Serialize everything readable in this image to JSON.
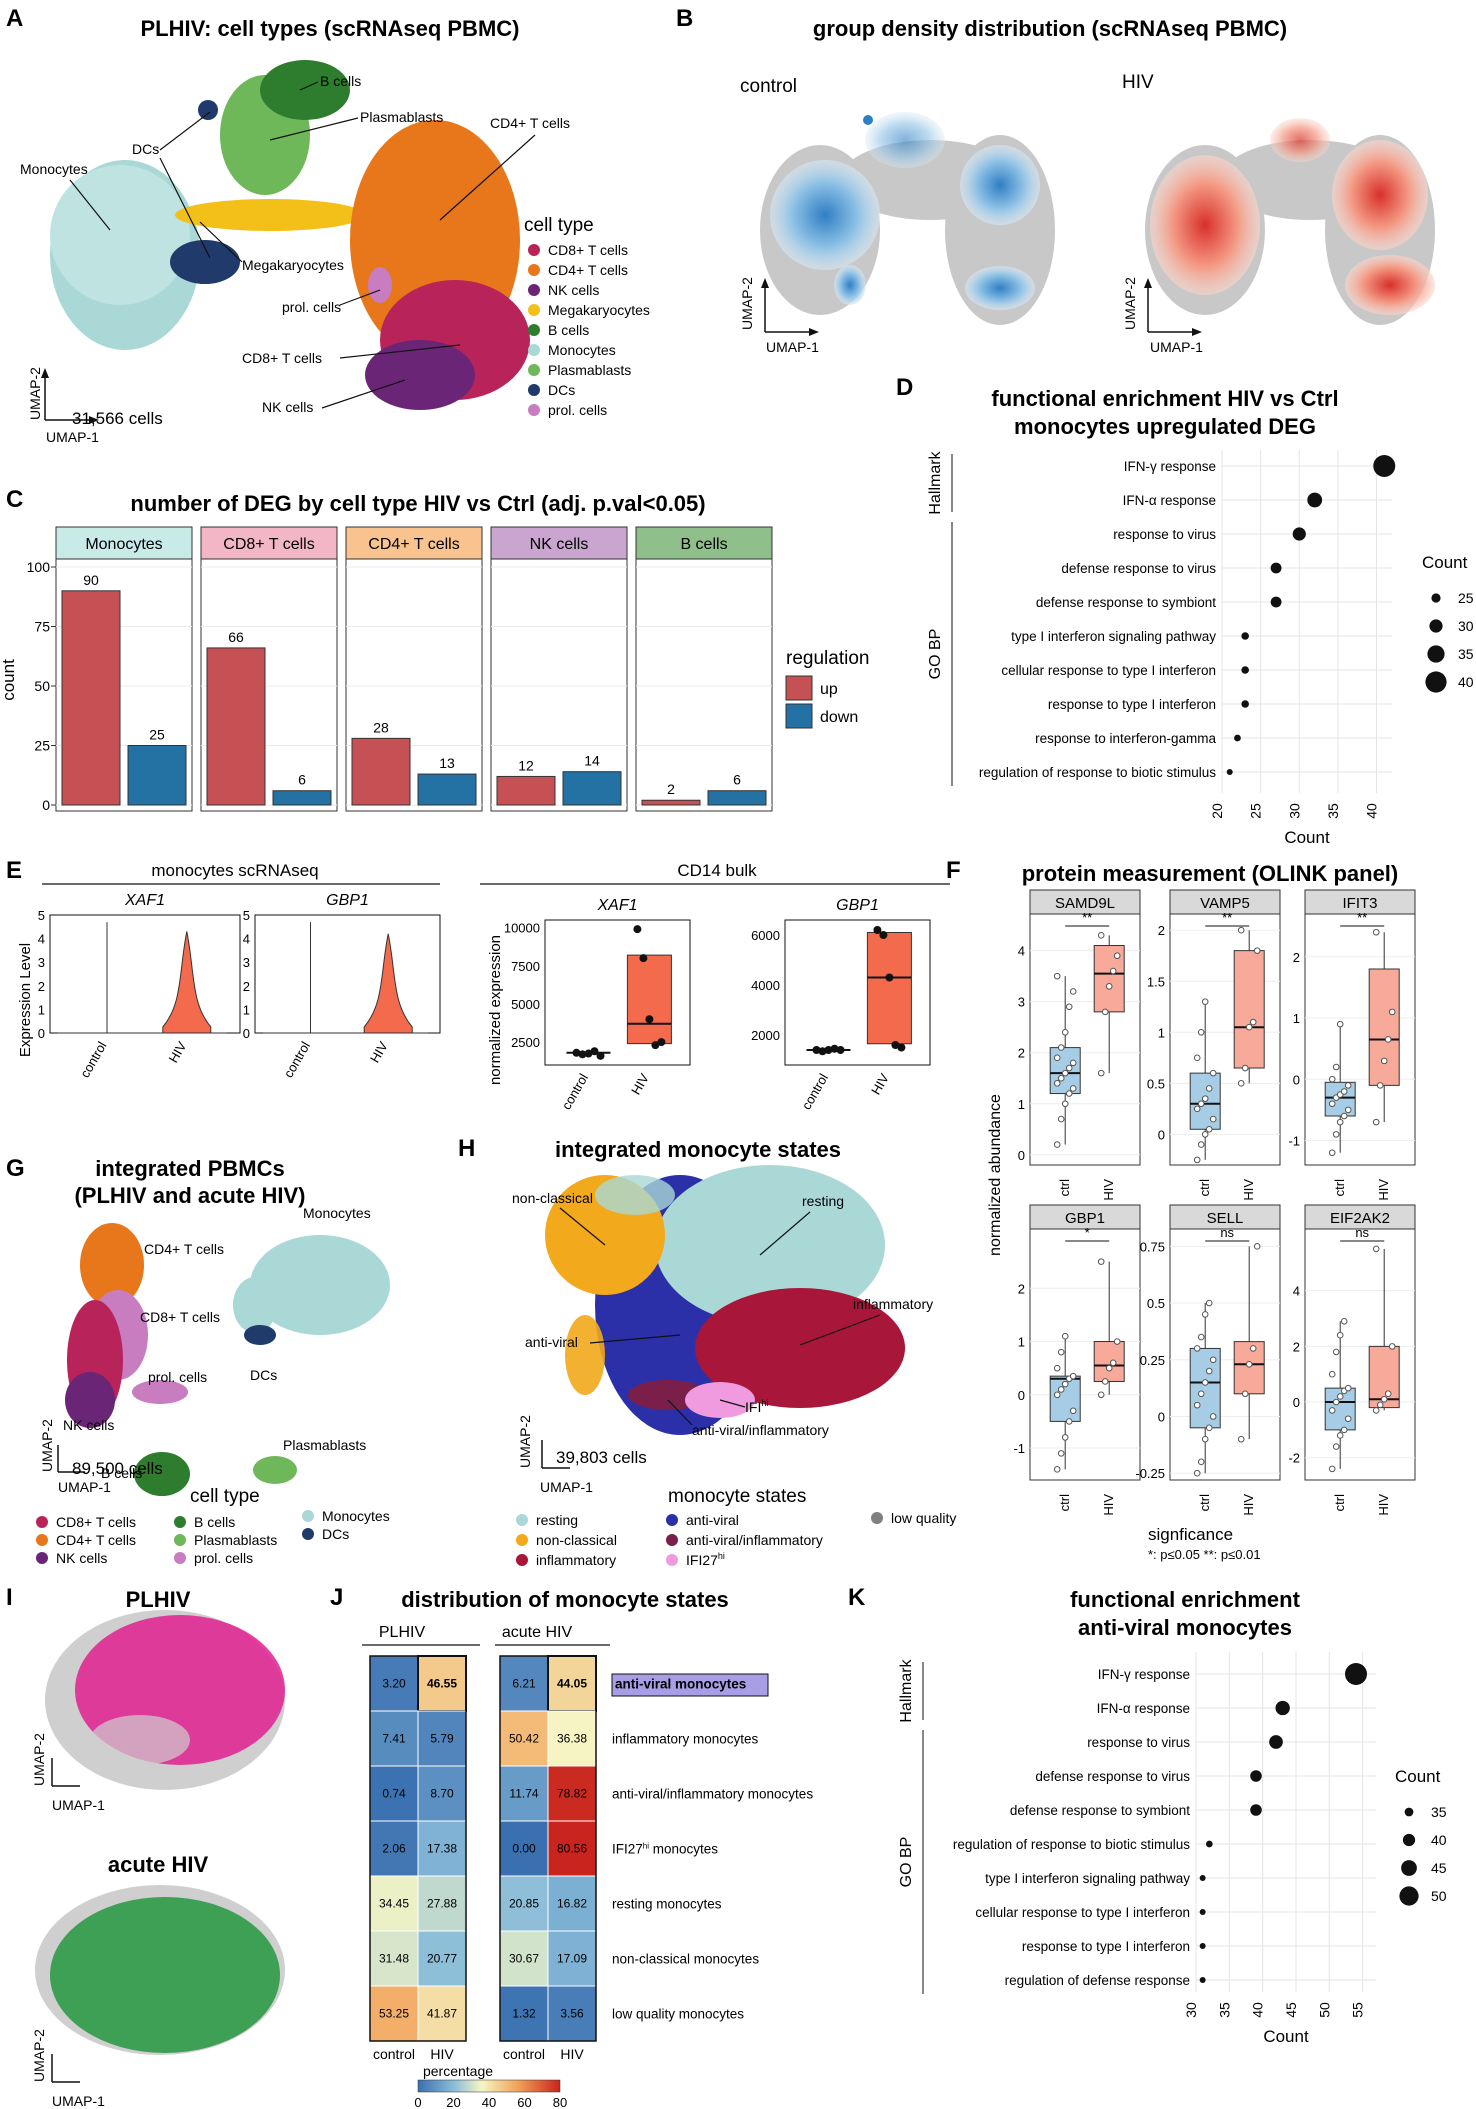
{
  "figure": {
    "panel_letters": [
      "A",
      "B",
      "C",
      "D",
      "E",
      "F",
      "G",
      "H",
      "I",
      "J",
      "K"
    ]
  },
  "panelA": {
    "title": "PLHIV: cell types (scRNAseq PBMC)",
    "cells_count": "31,566 cells",
    "axis_x": "UMAP-1",
    "axis_y": "UMAP-2",
    "legend_title": "cell type",
    "legend": [
      {
        "label": "CD8+ T cells",
        "color": "#b8245a"
      },
      {
        "label": "CD4+ T cells",
        "color": "#e8761b"
      },
      {
        "label": "NK cells",
        "color": "#6b2577"
      },
      {
        "label": "Megakaryocytes",
        "color": "#f2c019"
      },
      {
        "label": "B cells",
        "color": "#2e7d2e"
      },
      {
        "label": "Monocytes",
        "color": "#a9d8d6"
      },
      {
        "label": "Plasmablasts",
        "color": "#6fb85a"
      },
      {
        "label": "DCs",
        "color": "#1f3a6b"
      },
      {
        "label": "prol. cells",
        "color": "#c77dc0"
      }
    ],
    "cluster_labels": [
      "B cells",
      "Plasmablasts",
      "DCs",
      "CD4+ T cells",
      "Monocytes",
      "Megakaryocytes",
      "prol. cells",
      "CD8+ T cells",
      "NK cells"
    ]
  },
  "panelB": {
    "title": "group density distribution (scRNAseq PBMC)",
    "groups": [
      "control",
      "HIV"
    ],
    "axis_x": "UMAP-1",
    "axis_y": "UMAP-2"
  },
  "panelC": {
    "title": "number of DEG by cell type HIV vs Ctrl (adj. p.val<0.05)",
    "ylabel": "count",
    "legend_title": "regulation",
    "legend": [
      {
        "label": "up",
        "color": "#c65154"
      },
      {
        "label": "down",
        "color": "#2471a3"
      }
    ],
    "chart_data": {
      "type": "bar",
      "categories": [
        "Monocytes",
        "CD8+ T cells",
        "CD4+ T cells",
        "NK cells",
        "B cells"
      ],
      "facet_colors": [
        "#c8ebe8",
        "#f2b6c6",
        "#f9c38f",
        "#c9a5cf",
        "#8fbf8a"
      ],
      "series": [
        {
          "name": "up",
          "values": [
            90,
            66,
            28,
            12,
            2
          ]
        },
        {
          "name": "down",
          "values": [
            25,
            6,
            13,
            14,
            6
          ]
        }
      ],
      "ylim": [
        0,
        100
      ],
      "yticks": [
        0,
        25,
        50,
        75,
        100
      ]
    }
  },
  "panelD": {
    "title_line1": "functional enrichment HIV vs Ctrl",
    "title_line2": "monocytes upregulated DEG",
    "group_hallmark": "Hallmark",
    "group_gobp": "GO BP",
    "xlabel": "Count",
    "legend_title": "Count",
    "legend_values": [
      25,
      30,
      35,
      40
    ],
    "chart_data": {
      "type": "scatter",
      "terms": [
        "IFN-γ response",
        "IFN-α response",
        "response to virus",
        "defense response to virus",
        "defense response to symbiont",
        "type I interferon signaling pathway",
        "cellular response to type I interferon",
        "response to type I interferon",
        "response to interferon-gamma",
        "regulation of response to biotic stimulus"
      ],
      "counts": [
        41,
        32,
        30,
        27,
        27,
        23,
        23,
        23,
        22,
        21
      ],
      "xlim": [
        20,
        42
      ],
      "xticks": [
        20,
        25,
        30,
        35,
        40
      ]
    }
  },
  "panelE": {
    "left_title": "monocytes scRNAseq",
    "right_title": "CD14 bulk",
    "genes": [
      "XAF1",
      "GBP1"
    ],
    "ylabel_left": "Expression Level",
    "ylabel_right": "normalized expression",
    "groups": [
      "control",
      "HIV"
    ],
    "chart_data": [
      {
        "type": "violin",
        "gene": "XAF1",
        "yticks": [
          0,
          1,
          2,
          3,
          4,
          5
        ],
        "ylim": [
          0,
          5
        ],
        "hiv_max": 4.3
      },
      {
        "type": "violin",
        "gene": "GBP1",
        "yticks": [
          0,
          1,
          2,
          3,
          4,
          5
        ],
        "ylim": [
          0,
          5
        ],
        "hiv_max": 4.2
      },
      {
        "type": "box",
        "gene": "XAF1",
        "yticks": [
          2500,
          5000,
          7500,
          10000
        ],
        "ylim": [
          1000,
          10500
        ],
        "control": {
          "points": [
            1800,
            1700,
            1750,
            1900,
            1600
          ],
          "median": 1800,
          "q1": 1700,
          "q3": 1850
        },
        "HIV": {
          "points": [
            9900,
            8000,
            4000,
            2300,
            2500
          ],
          "median": 3700,
          "q1": 2400,
          "q3": 8200
        }
      },
      {
        "type": "box",
        "gene": "GBP1",
        "yticks": [
          2000,
          4000,
          6000
        ],
        "ylim": [
          800,
          6600
        ],
        "control": {
          "points": [
            1400,
            1350,
            1400,
            1450,
            1400
          ],
          "median": 1400,
          "q1": 1380,
          "q3": 1420
        },
        "HIV": {
          "points": [
            6200,
            6000,
            4300,
            1600,
            1500
          ],
          "median": 4300,
          "q1": 1650,
          "q3": 6100
        }
      }
    ]
  },
  "panelF": {
    "title": "protein measurement (OLINK panel)",
    "ylabel": "normalized abundance",
    "groups": [
      "ctrl",
      "HIV"
    ],
    "significance_title": "signficance",
    "significance_legend": "*: p≤0.05     **: p≤0.01",
    "chart_data": [
      {
        "type": "box",
        "protein": "SAMD9L",
        "sig": "**",
        "ylim": [
          -0.2,
          4.6
        ],
        "yticks": [
          0,
          1,
          2,
          3,
          4
        ],
        "ctrl": {
          "q1": 1.2,
          "median": 1.6,
          "q3": 2.1,
          "lo": 0.2,
          "hi": 3.5,
          "points": [
            0.2,
            0.7,
            1.0,
            1.2,
            1.3,
            1.4,
            1.5,
            1.6,
            1.7,
            1.8,
            1.9,
            2.1,
            2.4,
            2.9,
            3.2,
            3.5
          ]
        },
        "HIV": {
          "q1": 2.8,
          "median": 3.55,
          "q3": 4.1,
          "lo": 1.6,
          "hi": 4.3,
          "points": [
            1.6,
            2.8,
            3.3,
            3.6,
            3.9,
            4.3
          ]
        }
      },
      {
        "type": "box",
        "protein": "VAMP5",
        "sig": "**",
        "ylim": [
          -0.3,
          2.1
        ],
        "yticks": [
          0.0,
          0.5,
          1.0,
          1.5,
          2.0
        ],
        "ctrl": {
          "q1": 0.05,
          "median": 0.3,
          "q3": 0.6,
          "lo": -0.25,
          "hi": 1.3,
          "points": [
            -0.25,
            -0.1,
            0.0,
            0.05,
            0.15,
            0.25,
            0.3,
            0.35,
            0.45,
            0.6,
            0.75,
            1.0,
            1.3
          ]
        },
        "HIV": {
          "q1": 0.65,
          "median": 1.05,
          "q3": 1.8,
          "lo": 0.5,
          "hi": 2.0,
          "points": [
            0.5,
            0.65,
            1.05,
            1.1,
            1.8,
            2.0
          ]
        }
      },
      {
        "type": "box",
        "protein": "IFIT3",
        "sig": "**",
        "ylim": [
          -1.4,
          2.6
        ],
        "yticks": [
          -1,
          0,
          1,
          2
        ],
        "ctrl": {
          "q1": -0.6,
          "median": -0.3,
          "q3": -0.05,
          "lo": -1.2,
          "hi": 0.9,
          "points": [
            -1.2,
            -0.9,
            -0.7,
            -0.6,
            -0.5,
            -0.4,
            -0.3,
            -0.25,
            -0.2,
            -0.1,
            0.0,
            0.2,
            0.9
          ]
        },
        "HIV": {
          "q1": -0.1,
          "median": 0.65,
          "q3": 1.8,
          "lo": -0.7,
          "hi": 2.4,
          "points": [
            -0.7,
            -0.1,
            0.3,
            0.65,
            1.1,
            2.4
          ]
        }
      },
      {
        "type": "box",
        "protein": "GBP1",
        "sig": "*",
        "ylim": [
          -1.6,
          3.0
        ],
        "yticks": [
          -1,
          0,
          1,
          2
        ],
        "ctrl": {
          "q1": -0.5,
          "median": 0.3,
          "q3": 0.35,
          "lo": -1.4,
          "hi": 1.1,
          "points": [
            -1.4,
            -1.1,
            -0.8,
            -0.5,
            -0.3,
            0.0,
            0.1,
            0.2,
            0.3,
            0.35,
            0.5,
            0.8,
            1.1
          ]
        },
        "HIV": {
          "q1": 0.25,
          "median": 0.55,
          "q3": 1.0,
          "lo": 0.0,
          "hi": 2.5,
          "points": [
            0.0,
            0.25,
            0.5,
            0.6,
            1.0,
            2.5
          ]
        }
      },
      {
        "type": "box",
        "protein": "SELL",
        "sig": "ns",
        "ylim": [
          -0.28,
          0.8
        ],
        "yticks": [
          -0.25,
          0.0,
          0.25,
          0.5,
          0.75
        ],
        "ctrl": {
          "q1": -0.05,
          "median": 0.15,
          "q3": 0.3,
          "lo": -0.25,
          "hi": 0.5,
          "points": [
            -0.25,
            -0.2,
            -0.1,
            -0.05,
            0.0,
            0.05,
            0.1,
            0.15,
            0.2,
            0.25,
            0.3,
            0.35,
            0.45,
            0.5
          ]
        },
        "HIV": {
          "q1": 0.1,
          "median": 0.23,
          "q3": 0.33,
          "lo": -0.1,
          "hi": 0.75,
          "points": [
            -0.1,
            0.1,
            0.23,
            0.3,
            0.75
          ]
        }
      },
      {
        "type": "box",
        "protein": "EIF2AK2",
        "sig": "ns",
        "ylim": [
          -2.8,
          6.0
        ],
        "yticks": [
          -2,
          0,
          2,
          4
        ],
        "ctrl": {
          "q1": -1.0,
          "median": 0.0,
          "q3": 0.5,
          "lo": -2.4,
          "hi": 2.9,
          "points": [
            -2.4,
            -1.6,
            -1.2,
            -1.0,
            -0.6,
            -0.3,
            0.0,
            0.2,
            0.4,
            0.5,
            1.0,
            1.8,
            2.4,
            2.9
          ]
        },
        "HIV": {
          "q1": -0.2,
          "median": 0.1,
          "q3": 2.0,
          "lo": -0.3,
          "hi": 5.5,
          "points": [
            -0.3,
            -0.1,
            0.1,
            0.3,
            2.0,
            5.5
          ]
        }
      }
    ]
  },
  "panelG": {
    "title_line1": "integrated PBMCs",
    "title_line2": "(PLHIV and acute HIV)",
    "cells_count": "89,500 cells",
    "axis_x": "UMAP-1",
    "axis_y": "UMAP-2",
    "legend_title": "cell type",
    "legend": [
      {
        "label": "CD8+ T cells",
        "color": "#b8245a"
      },
      {
        "label": "CD4+ T cells",
        "color": "#e8761b"
      },
      {
        "label": "NK cells",
        "color": "#6b2577"
      },
      {
        "label": "B cells",
        "color": "#2e7d2e"
      },
      {
        "label": "Plasmablasts",
        "color": "#6fb85a"
      },
      {
        "label": "prol. cells",
        "color": "#c77dc0"
      },
      {
        "label": "Monocytes",
        "color": "#a9d8d6"
      },
      {
        "label": "DCs",
        "color": "#1f3a6b"
      }
    ],
    "cluster_labels": [
      "CD4+ T cells",
      "Monocytes",
      "CD8+ T cells",
      "prol. cells",
      "DCs",
      "NK cells",
      "B cells",
      "Plasmablasts"
    ]
  },
  "panelH": {
    "title": "integrated monocyte states",
    "cells_count": "39,803 cells",
    "axis_x": "UMAP-1",
    "axis_y": "UMAP-2",
    "legend_title": "monocyte states",
    "legend": [
      {
        "label": "resting",
        "color": "#a9d8d6"
      },
      {
        "label": "non-classical",
        "color": "#f2a91b"
      },
      {
        "label": "inflammatory",
        "color": "#a8163a"
      },
      {
        "label": "anti-viral",
        "color": "#2b2fa8"
      },
      {
        "label": "anti-viral/inflammatory",
        "color": "#7a1f4a"
      },
      {
        "label": "IFI27hi",
        "color": "#f09ae0"
      },
      {
        "label": "low quality",
        "color": "#808080"
      }
    ],
    "cluster_labels": [
      "non-classical",
      "resting",
      "inflammatory",
      "anti-viral",
      "IFI",
      "anti-viral/inflammatory"
    ],
    "ifi_superscript": "hi"
  },
  "panelI": {
    "title_plhiv": "PLHIV",
    "title_acute": "acute HIV",
    "axis_x": "UMAP-1",
    "axis_y": "UMAP-2"
  },
  "panelJ": {
    "title": "distribution of monocyte states",
    "group_plhiv": "PLHIV",
    "group_acute": "acute HIV",
    "columns": [
      "control",
      "HIV",
      "control",
      "HIV"
    ],
    "xlabel": "percentage",
    "scale_ticks": [
      0,
      20,
      40,
      60,
      80
    ],
    "chart_data": {
      "type": "heatmap",
      "rows": [
        "anti-viral monocytes",
        "inflammatory monocytes",
        "anti-viral/inflammatory monocytes",
        "IFI27hi monocytes",
        "resting monocytes",
        "non-classical monocytes",
        "low quality monocytes"
      ],
      "values": [
        [
          3.2,
          46.55,
          6.21,
          44.05
        ],
        [
          7.41,
          5.79,
          50.42,
          36.38
        ],
        [
          0.74,
          8.7,
          11.74,
          78.82
        ],
        [
          2.06,
          17.38,
          0.0,
          80.56
        ],
        [
          34.45,
          27.88,
          20.85,
          16.82
        ],
        [
          31.48,
          20.77,
          30.67,
          17.09
        ],
        [
          53.25,
          41.87,
          1.32,
          3.56
        ]
      ],
      "labels": [
        [
          "3.20",
          "46.55",
          "6.21",
          "44.05"
        ],
        [
          "7.41",
          "5.79",
          "50.42",
          "36.38"
        ],
        [
          "0.74",
          "8.70",
          "11.74",
          "78.82"
        ],
        [
          "2.06",
          "17.38",
          "0.00",
          "80.56"
        ],
        [
          "34.45",
          "27.88",
          "20.85",
          "16.82"
        ],
        [
          "31.48",
          "20.77",
          "30.67",
          "17.09"
        ],
        [
          "53.25",
          "41.87",
          "1.32",
          "3.56"
        ]
      ],
      "highlight_row": "anti-viral monocytes"
    }
  },
  "panelK": {
    "title_line1": "functional enrichment",
    "title_line2": "anti-viral monocytes",
    "group_hallmark": "Hallmark",
    "group_gobp": "GO BP",
    "xlabel": "Count",
    "legend_title": "Count",
    "legend_values": [
      35,
      40,
      45,
      50
    ],
    "chart_data": {
      "type": "scatter",
      "terms": [
        "IFN-γ response",
        "IFN-α response",
        "response to virus",
        "defense response to virus",
        "defense response to symbiont",
        "regulation of response to biotic stimulus",
        "type I interferon signaling pathway",
        "cellular response to type I interferon",
        "response to type I interferon",
        "regulation of defense response"
      ],
      "counts": [
        54,
        43,
        42,
        39,
        39,
        32,
        31,
        31,
        31,
        31
      ],
      "xlim": [
        30,
        57
      ],
      "xticks": [
        30,
        35,
        40,
        45,
        50,
        55
      ]
    }
  }
}
